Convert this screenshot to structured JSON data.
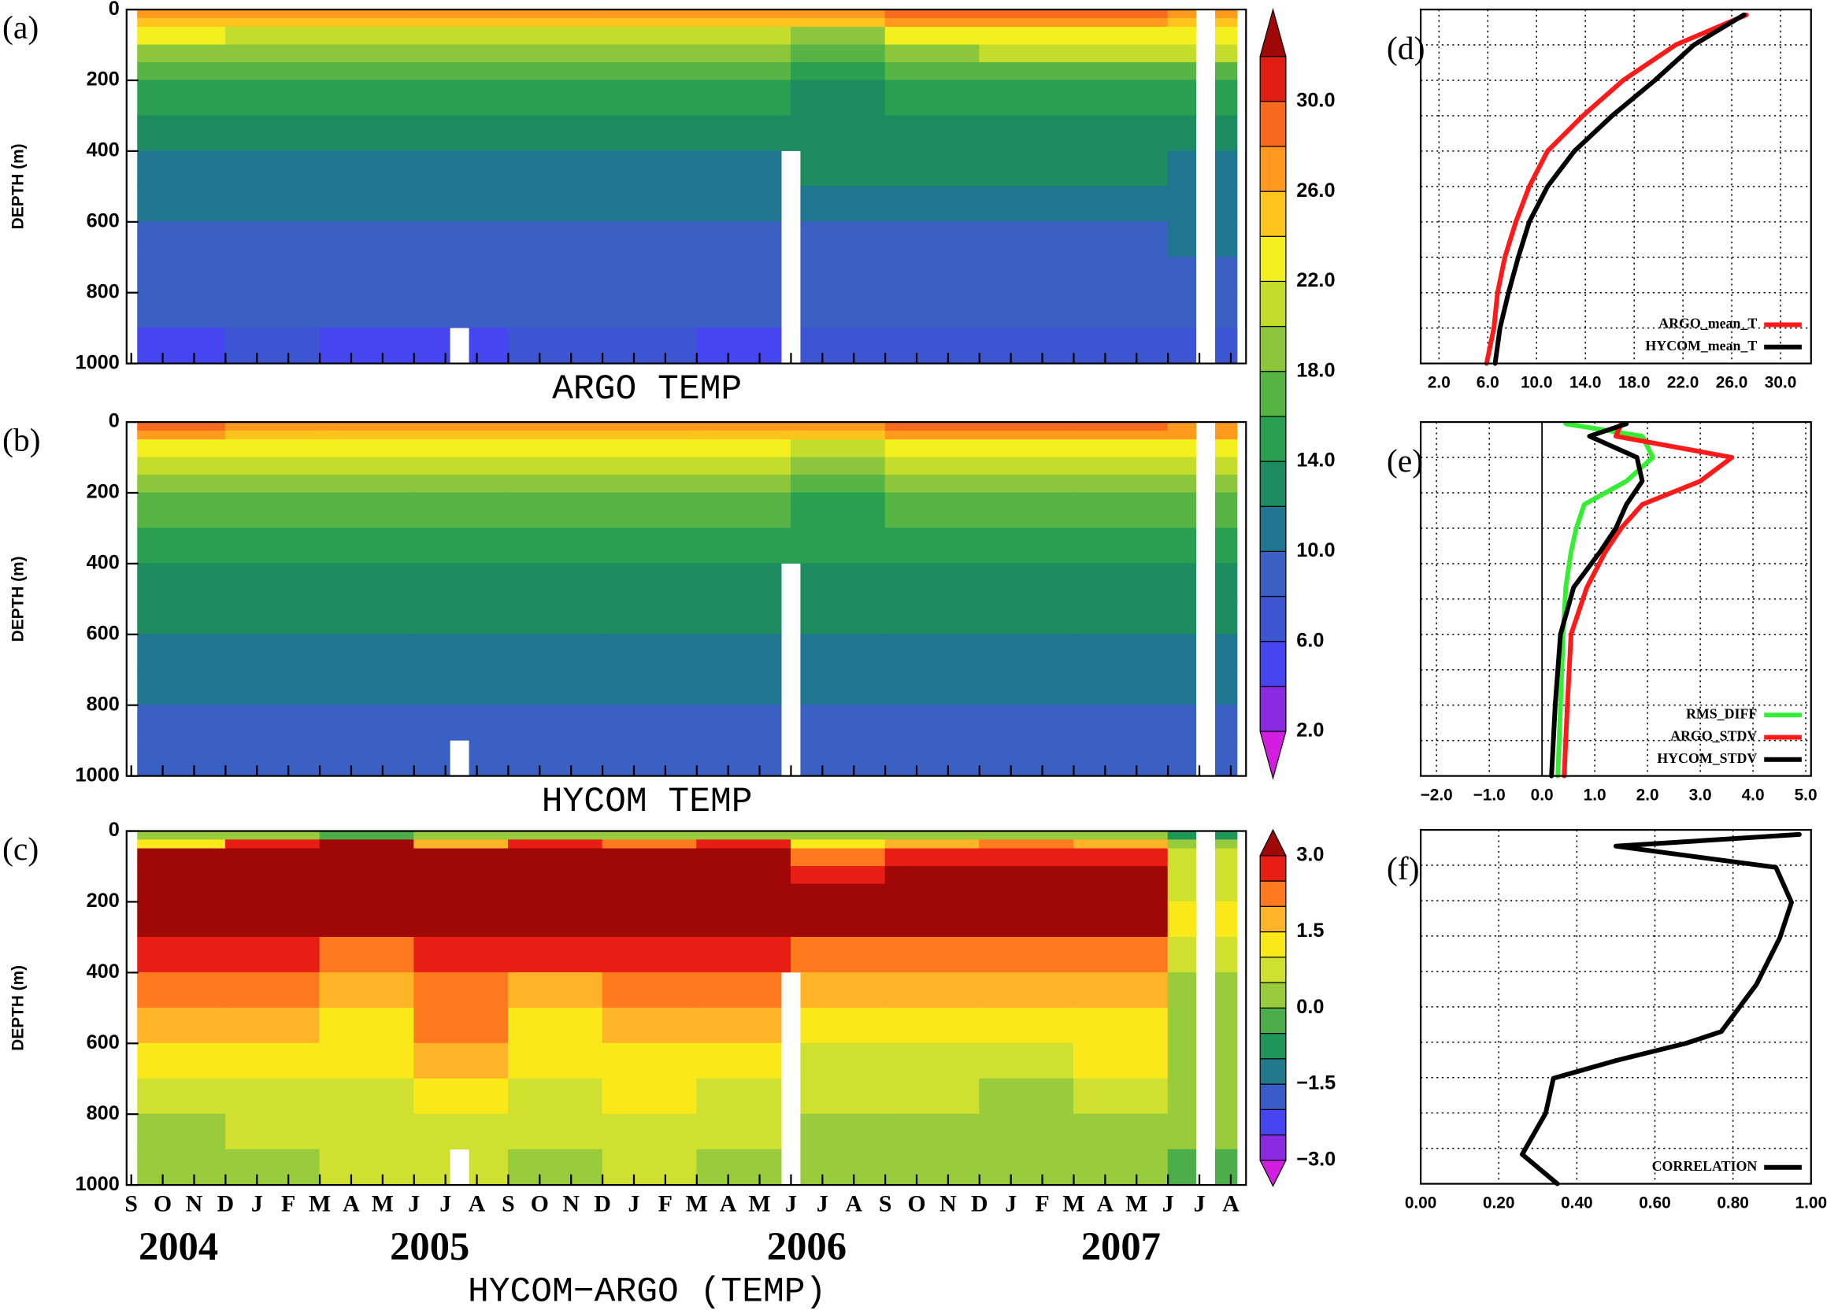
{
  "chart_data": [
    {
      "type": "contour",
      "label": "(a)",
      "title": "ARGO TEMP",
      "ylabel": "DEPTH (m)",
      "ylim": [
        0,
        1000
      ],
      "y_inverted": true,
      "yticks": [
        0,
        200,
        400,
        600,
        800,
        1000
      ],
      "x_edges": [
        0.2,
        3,
        6,
        9,
        12,
        15,
        18,
        21,
        24,
        27,
        30,
        33,
        35.2
      ],
      "depths": [
        0,
        25,
        50,
        100,
        150,
        200,
        300,
        400,
        500,
        600,
        700,
        800,
        900,
        1000
      ],
      "z": [
        [
          27,
          27,
          27,
          27,
          27,
          27,
          27,
          27,
          28.5,
          29,
          29,
          27
        ],
        [
          25,
          25,
          25,
          25,
          25,
          25,
          25,
          25,
          26.5,
          27,
          26.5,
          25
        ],
        [
          22.5,
          21,
          21,
          21,
          21.5,
          21,
          21.5,
          19,
          23,
          23,
          22.5,
          23
        ],
        [
          19,
          19,
          18.5,
          19,
          19,
          19,
          19.5,
          17,
          19,
          21,
          20,
          21
        ],
        [
          17.5,
          17,
          17,
          17.5,
          17,
          17,
          17,
          15,
          17,
          17.5,
          17.5,
          17.5
        ],
        [
          15.5,
          15,
          15,
          15.5,
          15,
          15,
          15,
          13.5,
          15,
          15.5,
          15.5,
          15
        ],
        [
          13,
          13,
          13,
          13,
          13,
          13,
          13,
          12,
          13,
          13,
          13,
          13
        ],
        [
          11,
          11,
          11,
          11,
          11,
          11,
          11.5,
          12,
          12,
          12,
          12,
          11.5
        ],
        [
          10.5,
          10.5,
          10.5,
          10.5,
          10.5,
          10.5,
          11,
          10.5,
          11,
          11,
          11,
          10.5
        ],
        [
          9,
          9,
          9,
          9,
          9,
          9,
          9,
          9,
          9.5,
          9.5,
          9.5,
          10.5
        ],
        [
          8.5,
          8.5,
          8.5,
          8.5,
          8.5,
          8.5,
          8.5,
          8.5,
          8.5,
          8.5,
          8.5,
          9
        ],
        [
          8,
          8,
          8,
          8,
          8,
          8,
          8,
          8,
          8,
          8,
          8,
          8.5
        ],
        [
          5.5,
          7,
          5.5,
          5.5,
          7,
          7,
          5.5,
          7,
          7,
          7,
          7,
          7
        ]
      ],
      "missing": [
        {
          "x": [
            10.15,
            10.75
          ],
          "y": [
            900,
            1000
          ]
        },
        {
          "x": [
            20.7,
            21.3
          ],
          "y": [
            400,
            1000
          ]
        },
        {
          "x": [
            33.9,
            34.5
          ],
          "y": [
            0,
            1000
          ]
        }
      ],
      "colorbar": {
        "levels": [
          2,
          4,
          6,
          8,
          10,
          12,
          14,
          16,
          18,
          20,
          22,
          24,
          26,
          28,
          30,
          32
        ],
        "colors": [
          "#d21ee0",
          "#8a2be2",
          "#4646f0",
          "#3c55d0",
          "#3a60c4",
          "#207690",
          "#1e8c60",
          "#28a050",
          "#58b444",
          "#8cc63a",
          "#c4dc2c",
          "#f4f020",
          "#ffc41e",
          "#ff9a1e",
          "#f86a1e",
          "#e01e14",
          "#a00808"
        ],
        "ticks": [
          {
            "value": 2,
            "label": "2.0"
          },
          {
            "value": 6,
            "label": "6.0"
          },
          {
            "value": 10,
            "label": "10.0"
          },
          {
            "value": 14,
            "label": "14.0"
          },
          {
            "value": 18,
            "label": "18.0"
          },
          {
            "value": 22,
            "label": "22.0"
          },
          {
            "value": 26,
            "label": "26.0"
          },
          {
            "value": 30,
            "label": "30.0"
          }
        ]
      }
    },
    {
      "type": "contour",
      "label": "(b)",
      "title": "HYCOM TEMP",
      "ylabel": "DEPTH (m)",
      "ylim": [
        0,
        1000
      ],
      "y_inverted": true,
      "yticks": [
        0,
        200,
        400,
        600,
        800,
        1000
      ],
      "x_edges": [
        0.2,
        3,
        6,
        9,
        12,
        15,
        18,
        21,
        24,
        27,
        30,
        33,
        35.2
      ],
      "depths": [
        0,
        25,
        50,
        100,
        150,
        200,
        300,
        400,
        500,
        600,
        700,
        800,
        900,
        1000
      ],
      "z": [
        [
          28.5,
          27,
          27,
          27,
          27,
          27,
          27,
          27,
          28.5,
          28.5,
          28.5,
          27
        ],
        [
          26.5,
          25,
          25,
          25.5,
          25,
          25,
          25,
          25,
          26.5,
          26.5,
          26.5,
          26
        ],
        [
          23,
          23,
          23,
          23,
          23,
          23,
          23,
          21,
          23,
          23,
          23,
          23
        ],
        [
          21,
          21,
          21,
          21,
          21,
          21,
          21,
          19,
          21,
          21,
          21,
          21
        ],
        [
          19,
          19,
          19,
          19,
          19,
          19,
          19,
          17,
          19,
          19,
          19,
          19
        ],
        [
          17,
          17,
          17,
          17,
          17,
          17,
          17,
          15.5,
          17,
          17,
          17,
          17
        ],
        [
          15,
          15,
          15,
          15,
          15,
          15,
          15,
          14.5,
          15,
          15,
          15,
          15
        ],
        [
          13,
          13,
          13,
          13,
          13,
          13,
          13,
          13,
          13,
          13,
          13,
          13
        ],
        [
          12.5,
          12.5,
          12.5,
          12.5,
          12.5,
          12.5,
          12.5,
          12.5,
          12.5,
          12.5,
          12.5,
          12.5
        ],
        [
          11,
          11,
          11,
          11,
          11,
          11,
          11,
          11,
          11,
          11,
          11,
          11
        ],
        [
          10.5,
          10.5,
          10.5,
          10.5,
          10.5,
          10.5,
          10.5,
          10.5,
          10.5,
          10.5,
          10.5,
          10.5
        ],
        [
          9,
          9,
          9,
          9,
          9,
          9,
          9,
          9,
          9,
          9,
          9,
          9
        ],
        [
          9,
          9,
          9,
          9,
          9,
          9,
          9,
          9,
          9,
          9,
          9,
          9
        ]
      ],
      "missing": [
        {
          "x": [
            10.15,
            10.75
          ],
          "y": [
            900,
            1000
          ]
        },
        {
          "x": [
            20.7,
            21.3
          ],
          "y": [
            400,
            1000
          ]
        },
        {
          "x": [
            33.9,
            34.5
          ],
          "y": [
            0,
            1000
          ]
        }
      ]
    },
    {
      "type": "contour",
      "label": "(c)",
      "title": "HYCOM−ARGO (TEMP)",
      "ylabel": "DEPTH (m)",
      "ylim": [
        0,
        1000
      ],
      "y_inverted": true,
      "yticks": [
        0,
        200,
        400,
        600,
        800,
        1000
      ],
      "categories": [
        "S",
        "O",
        "N",
        "D",
        "J",
        "F",
        "M",
        "A",
        "M",
        "J",
        "J",
        "A",
        "S",
        "O",
        "N",
        "D",
        "J",
        "F",
        "M",
        "A",
        "M",
        "J",
        "J",
        "A",
        "S",
        "O",
        "N",
        "D",
        "J",
        "F",
        "M",
        "A",
        "M",
        "J",
        "J",
        "A"
      ],
      "years": [
        "2004",
        "2005",
        "2006",
        "2007"
      ],
      "x_edges": [
        0.2,
        3,
        6,
        9,
        12,
        15,
        18,
        21,
        24,
        27,
        30,
        33,
        35.2
      ],
      "depths": [
        0,
        25,
        50,
        100,
        150,
        200,
        300,
        400,
        500,
        600,
        700,
        800,
        900,
        1000
      ],
      "z": [
        [
          0.3,
          0.2,
          -0.2,
          0.3,
          0.2,
          0.4,
          0.2,
          0.3,
          0.3,
          0.2,
          0.3,
          -0.8
        ],
        [
          1.2,
          2.5,
          3.2,
          1.5,
          2.5,
          2,
          2.5,
          1,
          1.5,
          2,
          1.5,
          0.2
        ],
        [
          3.2,
          3.2,
          3.3,
          3.1,
          3.1,
          3.1,
          3.2,
          2.2,
          2.6,
          2.8,
          2.5,
          0.5
        ],
        [
          3.2,
          3.3,
          3.3,
          3.2,
          3.2,
          3.2,
          3.3,
          2.8,
          3.1,
          3.1,
          3,
          0.5
        ],
        [
          3.3,
          3.3,
          3.4,
          3.3,
          3.2,
          3.3,
          3.4,
          3,
          3.1,
          3.2,
          3.1,
          0.6
        ],
        [
          3.1,
          3.2,
          3.1,
          3.1,
          3,
          3.1,
          3.2,
          3,
          3.1,
          3.2,
          3.1,
          1
        ],
        [
          2.6,
          2.5,
          2.4,
          2.6,
          2.5,
          2.7,
          2.6,
          2.3,
          2.4,
          2.3,
          2.2,
          0.5
        ],
        [
          2.2,
          2,
          1.8,
          2.4,
          1.8,
          2.2,
          2,
          1.6,
          1.7,
          1.6,
          1.7,
          0.3
        ],
        [
          1.6,
          1.5,
          1.3,
          2,
          1.3,
          1.7,
          1.5,
          1.2,
          1.3,
          1.2,
          1.4,
          0.3
        ],
        [
          1.2,
          1.1,
          1,
          1.6,
          1.1,
          1.4,
          1.2,
          0.8,
          0.9,
          0.8,
          1,
          0.2
        ],
        [
          0.7,
          0.8,
          0.9,
          1.2,
          0.8,
          1.1,
          0.9,
          0.5,
          0.6,
          0.4,
          0.6,
          0.1
        ],
        [
          0.4,
          0.5,
          0.7,
          0.8,
          0.6,
          0.8,
          0.6,
          0.4,
          0.3,
          0.2,
          0.4,
          0
        ],
        [
          0.3,
          0.4,
          0.6,
          0.6,
          0.4,
          0.6,
          0.4,
          0.3,
          0.2,
          0.2,
          0.3,
          -0.3
        ]
      ],
      "missing": [
        {
          "x": [
            10.15,
            10.75
          ],
          "y": [
            900,
            1000
          ]
        },
        {
          "x": [
            20.7,
            21.3
          ],
          "y": [
            400,
            1000
          ]
        },
        {
          "x": [
            33.9,
            34.5
          ],
          "y": [
            0,
            1000
          ]
        }
      ],
      "colorbar": {
        "levels": [
          -3,
          -2.5,
          -2,
          -1.5,
          -1,
          -0.5,
          0,
          0.5,
          1,
          1.5,
          2,
          2.5,
          3
        ],
        "colors": [
          "#d21ee0",
          "#8a2be2",
          "#4646f0",
          "#3a5cc8",
          "#207a8c",
          "#1e9658",
          "#4cae48",
          "#98cc3c",
          "#d0e030",
          "#fbe81a",
          "#ffb428",
          "#ff7a1e",
          "#e81e14",
          "#a00808"
        ],
        "ticks": [
          {
            "value": -3,
            "label": "−3.0"
          },
          {
            "value": -1.5,
            "label": "−1.5"
          },
          {
            "value": 0,
            "label": "0.0"
          },
          {
            "value": 1.5,
            "label": "1.5"
          },
          {
            "value": 3,
            "label": "3.0"
          }
        ]
      }
    },
    {
      "type": "line",
      "label": "(d)",
      "xlim": [
        0.5,
        32.5
      ],
      "ylim": [
        0,
        1000
      ],
      "y_inverted": true,
      "xticks": [
        {
          "value": 2,
          "label": "2.0"
        },
        {
          "value": 6,
          "label": "6.0"
        },
        {
          "value": 10,
          "label": "10.0"
        },
        {
          "value": 14,
          "label": "14.0"
        },
        {
          "value": 18,
          "label": "18.0"
        },
        {
          "value": 22,
          "label": "22.0"
        },
        {
          "value": 26,
          "label": "26.0"
        },
        {
          "value": 30,
          "label": "30.0"
        }
      ],
      "yticks": [
        100,
        200,
        300,
        400,
        500,
        600,
        700,
        800,
        900
      ],
      "grid": true,
      "legend": "lower right",
      "y": [
        15,
        50,
        100,
        200,
        300,
        400,
        500,
        600,
        700,
        800,
        900,
        1000
      ],
      "series": [
        {
          "name": "ARGO_mean_T",
          "color": "#ff1a1a",
          "values": [
            27.2,
            24.8,
            21.4,
            17.1,
            13.8,
            10.9,
            9.4,
            8.3,
            7.4,
            6.8,
            6.5,
            5.9
          ]
        },
        {
          "name": "HYCOM_mean_T",
          "color": "#000000",
          "values": [
            27,
            25.3,
            22.9,
            19.7,
            16.2,
            13.1,
            10.9,
            9.4,
            8.5,
            7.7,
            7,
            6.6
          ]
        }
      ]
    },
    {
      "type": "line",
      "label": "(e)",
      "xlim": [
        -2.3,
        5.1
      ],
      "ylim": [
        0,
        1000
      ],
      "y_inverted": true,
      "zero_line": true,
      "xticks": [
        {
          "value": -2,
          "label": "−2.0"
        },
        {
          "value": -1,
          "label": "−1.0"
        },
        {
          "value": 0,
          "label": "0.0"
        },
        {
          "value": 1,
          "label": "1.0"
        },
        {
          "value": 2,
          "label": "2.0"
        },
        {
          "value": 3,
          "label": "3.0"
        },
        {
          "value": 4,
          "label": "4.0"
        },
        {
          "value": 5,
          "label": "5.0"
        }
      ],
      "yticks": [
        100,
        200,
        300,
        400,
        500,
        600,
        700,
        800,
        900
      ],
      "grid": true,
      "legend": "lower right",
      "y": [
        5,
        40,
        100,
        167,
        233,
        300,
        367,
        467,
        600,
        800,
        1000
      ],
      "series": [
        {
          "name": "RMS_DIFF",
          "color": "#33ee33",
          "values": [
            0.45,
            1.9,
            2.1,
            1.6,
            0.8,
            0.65,
            0.55,
            0.45,
            0.4,
            0.35,
            0.3
          ]
        },
        {
          "name": "ARGO_STDV",
          "color": "#ff1a1a",
          "values": [
            1.5,
            1.4,
            3.6,
            3,
            1.9,
            1.5,
            1.2,
            0.85,
            0.55,
            0.48,
            0.42
          ]
        },
        {
          "name": "HYCOM_STDV",
          "color": "#000000",
          "values": [
            1.6,
            0.9,
            1.8,
            1.9,
            1.6,
            1.4,
            1.1,
            0.6,
            0.35,
            0.25,
            0.18
          ]
        }
      ]
    },
    {
      "type": "line",
      "label": "(f)",
      "xlim": [
        0,
        1
      ],
      "ylim": [
        0,
        1000
      ],
      "y_inverted": true,
      "xticks": [
        {
          "value": 0,
          "label": "0.00"
        },
        {
          "value": 0.2,
          "label": "0.20"
        },
        {
          "value": 0.4,
          "label": "0.40"
        },
        {
          "value": 0.6,
          "label": "0.60"
        },
        {
          "value": 0.8,
          "label": "0.80"
        },
        {
          "value": 1,
          "label": "1.00"
        }
      ],
      "yticks": [
        100,
        200,
        300,
        400,
        500,
        600,
        700,
        800,
        900
      ],
      "grid": true,
      "legend": "lower right",
      "y": [
        13,
        46,
        106,
        205,
        305,
        437,
        570,
        603,
        652,
        702,
        801,
        917,
        1000
      ],
      "series": [
        {
          "name": "CORRELATION",
          "color": "#000000",
          "values": [
            0.97,
            0.5,
            0.91,
            0.95,
            0.92,
            0.86,
            0.77,
            0.68,
            0.5,
            0.34,
            0.32,
            0.26,
            0.35
          ]
        }
      ]
    }
  ]
}
